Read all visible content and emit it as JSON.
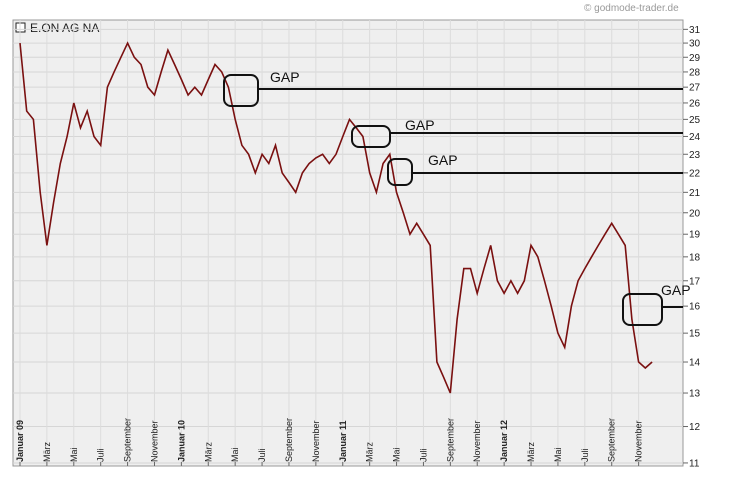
{
  "chart_data": {
    "type": "line",
    "title": "E.ON AG NA",
    "source": "© godmode-trader.de",
    "log_scale": true,
    "grid": true,
    "color": "#7a1010",
    "x": [
      0,
      0.5,
      1,
      1.5,
      2,
      2.5,
      3,
      3.5,
      4,
      4.5,
      5,
      5.5,
      6,
      6.5,
      7,
      7.5,
      8,
      8.5,
      9,
      9.5,
      10,
      10.5,
      11,
      11.5,
      12,
      12.5,
      13,
      13.5,
      14,
      14.5,
      15,
      15.5,
      16,
      16.5,
      17,
      17.5,
      18,
      18.5,
      19,
      19.5,
      20,
      20.5,
      21,
      21.5,
      22,
      22.5,
      23,
      23.5,
      24,
      24.5,
      25,
      25.5,
      26,
      26.5,
      27,
      27.5,
      28,
      28.5,
      29,
      29.5,
      30,
      30.5,
      31,
      31.5,
      32,
      32.5,
      33,
      33.5,
      34,
      34.5,
      35,
      35.5,
      36,
      36.5,
      37,
      37.5,
      38,
      38.5,
      39,
      39.5,
      40,
      40.5,
      41,
      41.5,
      42,
      42.5,
      43,
      43.5,
      44,
      44.5,
      45,
      45.5,
      46,
      46.5,
      47
    ],
    "values": [
      30,
      25.5,
      25,
      21,
      18.5,
      20.5,
      22.5,
      24,
      26,
      24.5,
      25.5,
      24,
      23.5,
      27,
      28,
      29,
      30,
      29,
      28.5,
      27,
      26.5,
      28,
      29.5,
      28.5,
      27.5,
      26.5,
      27,
      26.5,
      27.5,
      28.5,
      28,
      27,
      25,
      23.5,
      23,
      22,
      23,
      22.5,
      23.5,
      22,
      21.5,
      21,
      22,
      22.5,
      22.8,
      23,
      22.5,
      23,
      24,
      25,
      24.5,
      24,
      22,
      21,
      22.5,
      23,
      21,
      20,
      19,
      19.5,
      19,
      18.5,
      14,
      13.5,
      13,
      15.5,
      17.5,
      17.5,
      16.5,
      17.5,
      18.5,
      17,
      16.5,
      17,
      16.5,
      17,
      18.5,
      18,
      17,
      16,
      15,
      14.5,
      16,
      17,
      17.5,
      18,
      18.5,
      19,
      19.5,
      19,
      18.5,
      15.5,
      14,
      13.8,
      14
    ],
    "xlim": [
      -0.52,
      49.3
    ],
    "xticks": [
      {
        "value": 0,
        "label": "Januar 09"
      },
      {
        "value": 2,
        "label": "März"
      },
      {
        "value": 4,
        "label": "Mai"
      },
      {
        "value": 6,
        "label": "Juli"
      },
      {
        "value": 8,
        "label": "September"
      },
      {
        "value": 10,
        "label": "November"
      },
      {
        "value": 12,
        "label": "Januar 10"
      },
      {
        "value": 14,
        "label": "März"
      },
      {
        "value": 16,
        "label": "Mai"
      },
      {
        "value": 18,
        "label": "Juli"
      },
      {
        "value": 20,
        "label": "September"
      },
      {
        "value": 22,
        "label": "November"
      },
      {
        "value": 24,
        "label": "Januar 11"
      },
      {
        "value": 26,
        "label": "März"
      },
      {
        "value": 28,
        "label": "Mai"
      },
      {
        "value": 30,
        "label": "Juli"
      },
      {
        "value": 32,
        "label": "September"
      },
      {
        "value": 34,
        "label": "November"
      },
      {
        "value": 36,
        "label": "Januar 12"
      },
      {
        "value": 38,
        "label": "März"
      },
      {
        "value": 40,
        "label": "Mai"
      },
      {
        "value": 42,
        "label": "Juli"
      },
      {
        "value": 44,
        "label": "September"
      },
      {
        "value": 46,
        "label": "November"
      }
    ],
    "ylim": [
      10.92,
      31.7
    ],
    "yticks": [
      11,
      12,
      13,
      14,
      15,
      16,
      17,
      18,
      19,
      20,
      21,
      22,
      23,
      24,
      25,
      26,
      27,
      28,
      29,
      30,
      31
    ],
    "annotations": [
      "GAP",
      "GAP",
      "GAP",
      "GAP"
    ]
  }
}
